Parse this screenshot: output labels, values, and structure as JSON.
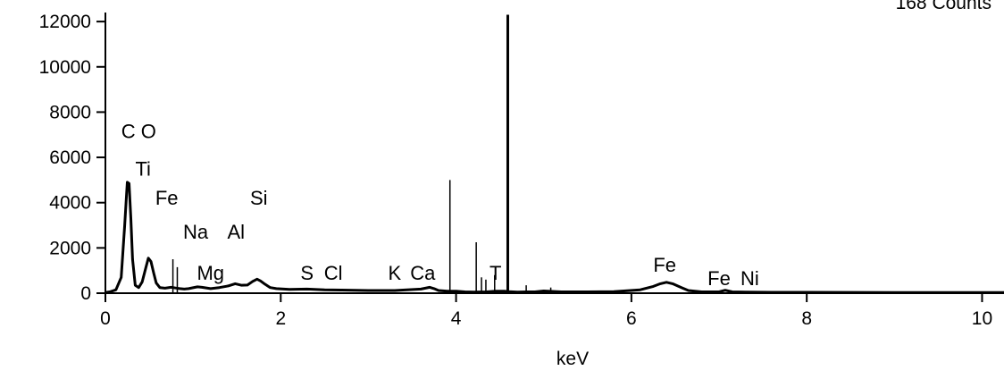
{
  "chart_data": {
    "type": "line",
    "title": "",
    "corner_text": "168 Counts",
    "xlabel": "keV",
    "ylabel": "",
    "xlim": [
      0,
      10.25
    ],
    "ylim": [
      0,
      12400
    ],
    "xticks": [
      0,
      2,
      4,
      6,
      8,
      10
    ],
    "yticks": [
      0,
      2000,
      4000,
      6000,
      8000,
      10000,
      12000
    ],
    "grid": false,
    "series": [
      {
        "x": [
          0.0,
          0.05,
          0.12,
          0.18,
          0.22,
          0.25,
          0.27,
          0.29,
          0.31,
          0.34,
          0.38,
          0.42,
          0.46,
          0.49,
          0.52,
          0.55,
          0.58,
          0.62,
          0.68,
          0.75,
          0.8,
          0.85,
          0.9,
          0.95,
          1.0,
          1.05,
          1.1,
          1.2,
          1.3,
          1.4,
          1.48,
          1.55,
          1.62,
          1.68,
          1.73,
          1.77,
          1.82,
          1.88,
          1.95,
          2.1,
          2.3,
          2.5,
          2.7,
          3.0,
          3.3,
          3.6,
          3.7,
          3.75,
          3.8,
          3.9,
          4.0,
          4.1,
          4.2,
          4.35,
          4.45,
          4.55,
          4.6,
          4.7,
          4.8,
          4.9,
          5.0,
          5.2,
          5.5,
          5.8,
          6.1,
          6.25,
          6.33,
          6.4,
          6.47,
          6.55,
          6.65,
          6.8,
          7.0,
          7.07,
          7.15,
          7.3,
          7.6,
          8.0,
          9.0,
          10.25
        ],
        "y": [
          30,
          60,
          150,
          700,
          3000,
          4900,
          4850,
          3300,
          1500,
          350,
          250,
          500,
          1100,
          1550,
          1400,
          900,
          450,
          250,
          220,
          260,
          230,
          200,
          180,
          200,
          240,
          280,
          260,
          200,
          250,
          320,
          420,
          350,
          360,
          520,
          620,
          540,
          400,
          250,
          200,
          170,
          180,
          150,
          140,
          120,
          120,
          180,
          260,
          200,
          120,
          90,
          90,
          60,
          50,
          60,
          90,
          90,
          70,
          50,
          60,
          60,
          100,
          60,
          60,
          70,
          150,
          300,
          420,
          480,
          420,
          280,
          120,
          60,
          60,
          130,
          60,
          50,
          40,
          40,
          30,
          30
        ]
      }
    ],
    "spikes": [
      {
        "x": 0.77,
        "y": 1500
      },
      {
        "x": 0.82,
        "y": 1150
      },
      {
        "x": 3.93,
        "y": 5000
      },
      {
        "x": 4.23,
        "y": 2250
      },
      {
        "x": 4.29,
        "y": 700
      },
      {
        "x": 4.34,
        "y": 600
      },
      {
        "x": 4.44,
        "y": 800
      },
      {
        "x": 4.59,
        "y": 12300
      },
      {
        "x": 4.8,
        "y": 350
      },
      {
        "x": 5.08,
        "y": 250
      }
    ],
    "peak_labels": [
      {
        "text": "C O",
        "x": 0.38,
        "y": 6850
      },
      {
        "text": "Ti",
        "x": 0.43,
        "y": 5200
      },
      {
        "text": "Fe",
        "x": 0.7,
        "y": 3900
      },
      {
        "text": "Si",
        "x": 1.75,
        "y": 3900
      },
      {
        "text": "Na",
        "x": 1.03,
        "y": 2400
      },
      {
        "text": "Al",
        "x": 1.49,
        "y": 2400
      },
      {
        "text": "Mg",
        "x": 1.2,
        "y": 600
      },
      {
        "text": "S",
        "x": 2.3,
        "y": 600
      },
      {
        "text": "Cl",
        "x": 2.6,
        "y": 600
      },
      {
        "text": "K",
        "x": 3.3,
        "y": 600
      },
      {
        "text": "Ca",
        "x": 3.62,
        "y": 600
      },
      {
        "text": "T",
        "x": 4.45,
        "y": 600
      },
      {
        "text": "Fe",
        "x": 6.38,
        "y": 950
      },
      {
        "text": "Fe",
        "x": 7.0,
        "y": 350
      },
      {
        "text": "Ni",
        "x": 7.35,
        "y": 350
      }
    ]
  }
}
